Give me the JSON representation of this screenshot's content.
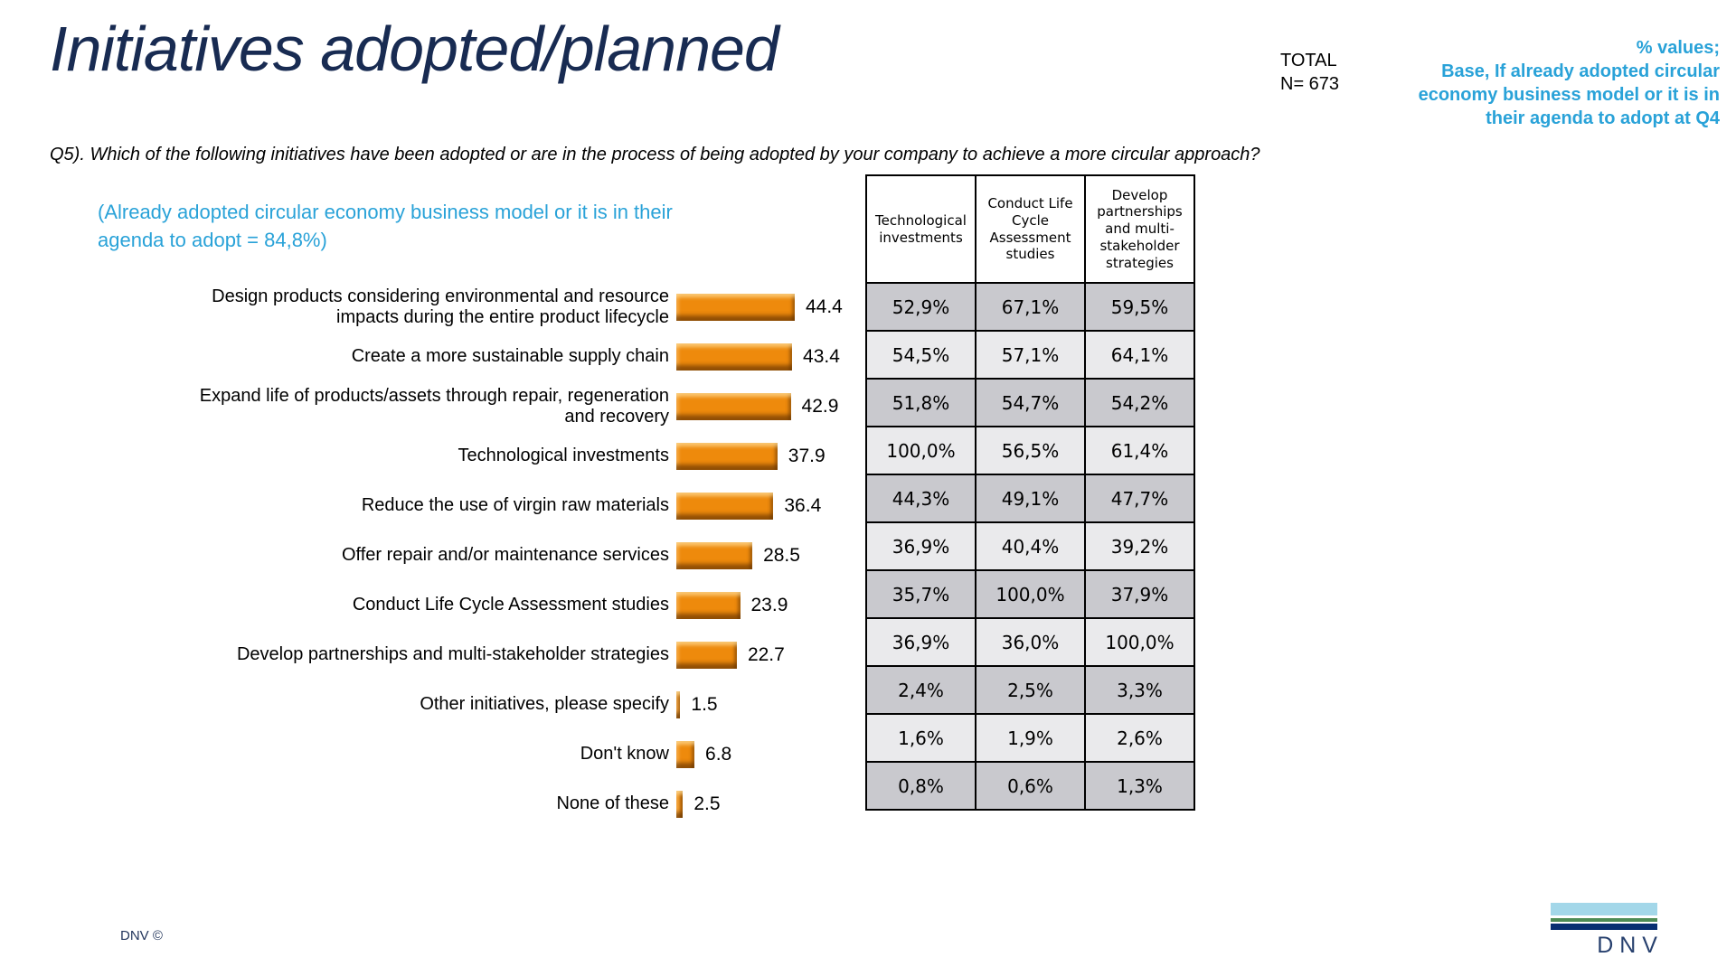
{
  "slide": {
    "title": "Initiatives adopted/planned",
    "total": "TOTAL\nN= 673",
    "base_note": "% values;\nBase, If already adopted circular\neconomy business model or it is in\ntheir agenda to adopt at Q4",
    "question": "Q5). Which of the following initiatives have been adopted or are in the process of being adopted by your company to achieve a more circular approach?",
    "filter_note": "(Already adopted circular economy business model or it is in their\nagenda to adopt = 84,8%)",
    "footer_copyright": "DNV ©",
    "logo_text": "DNV"
  },
  "colors": {
    "title_navy": "#182B52",
    "accent_cyan": "#29A2D8",
    "bar_orange": "#EE8A0C",
    "table_row_dark": "#C9C9CE",
    "table_row_light": "#EAEAEC",
    "logo_light_blue": "#A3D7E9",
    "logo_green": "#4E8C55",
    "logo_navy": "#082E71"
  },
  "chart_data": [
    {
      "type": "bar",
      "orientation": "horizontal",
      "title": "Initiatives adopted/planned",
      "xlabel": "",
      "ylabel": "",
      "xlim": [
        0,
        50
      ],
      "grid": false,
      "legend": "none",
      "bar_color": "#EE8A0C",
      "categories": [
        "Design products considering environmental and resource\nimpacts during the entire product lifecycle",
        "Create a more sustainable supply chain",
        "Expand life of products/assets through repair, regeneration\nand recovery",
        "Technological investments",
        "Reduce the use of virgin raw materials",
        "Offer repair and/or maintenance services",
        "Conduct Life Cycle Assessment studies",
        "Develop partnerships and multi-stakeholder strategies",
        "Other initiatives, please specify",
        "Don't know",
        "None of these"
      ],
      "values": [
        44.4,
        43.4,
        42.9,
        37.9,
        36.4,
        28.5,
        23.9,
        22.7,
        1.5,
        6.8,
        2.5
      ]
    },
    {
      "type": "table",
      "columns": [
        "Technological investments",
        "Conduct Life Cycle Assessment studies",
        "Develop partnerships and multi-stakeholder strategies"
      ],
      "rows": [
        [
          "52,9%",
          "67,1%",
          "59,5%"
        ],
        [
          "54,5%",
          "57,1%",
          "64,1%"
        ],
        [
          "51,8%",
          "54,7%",
          "54,2%"
        ],
        [
          "100,0%",
          "56,5%",
          "61,4%"
        ],
        [
          "44,3%",
          "49,1%",
          "47,7%"
        ],
        [
          "36,9%",
          "40,4%",
          "39,2%"
        ],
        [
          "35,7%",
          "100,0%",
          "37,9%"
        ],
        [
          "36,9%",
          "36,0%",
          "100,0%"
        ],
        [
          "2,4%",
          "2,5%",
          "3,3%"
        ],
        [
          "1,6%",
          "1,9%",
          "2,6%"
        ],
        [
          "0,8%",
          "0,6%",
          "1,3%"
        ]
      ]
    }
  ]
}
